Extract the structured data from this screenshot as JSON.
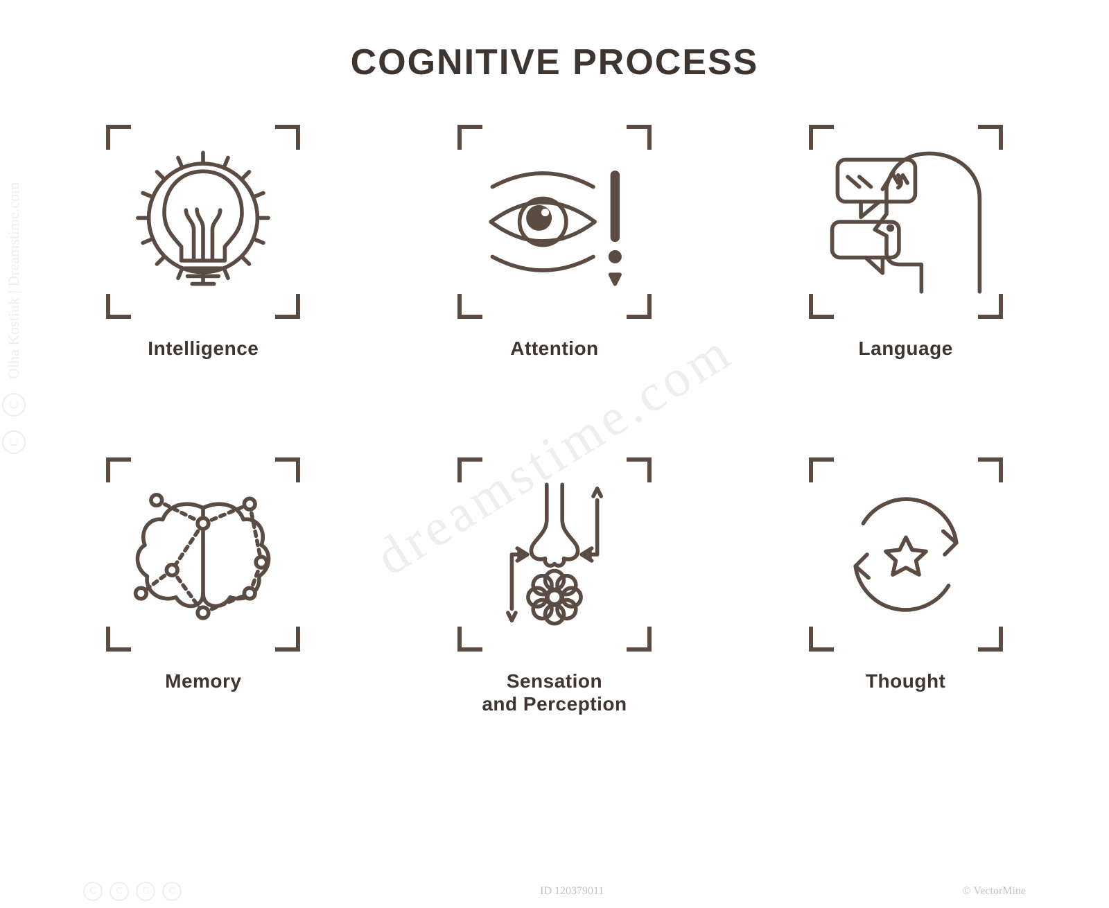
{
  "title": "COGNITIVE PROCESS",
  "title_fontsize": 52,
  "title_color": "#3f3530",
  "stroke_color": "#5a4c43",
  "background_color": "#ffffff",
  "frame_size": 280,
  "corner_size": 36,
  "corner_thickness": 6,
  "label_fontsize": 28,
  "label_color": "#3f3530",
  "icon_stroke_width": 5,
  "grid": {
    "cols": 3,
    "rows": 2,
    "col_gap": 120,
    "row_gap": 140
  },
  "cells": [
    {
      "id": "intelligence",
      "label": "Intelligence",
      "icon": "lightbulb-rays-icon"
    },
    {
      "id": "attention",
      "label": "Attention",
      "icon": "eye-alert-icon"
    },
    {
      "id": "language",
      "label": "Language",
      "icon": "head-speech-icon"
    },
    {
      "id": "memory",
      "label": "Memory",
      "icon": "brain-network-icon"
    },
    {
      "id": "sensation",
      "label": "Sensation\nand Perception",
      "icon": "nose-flower-cycle-icon"
    },
    {
      "id": "thought",
      "label": "Thought",
      "icon": "cycle-star-icon"
    }
  ],
  "watermark": {
    "color": "#f0eeec",
    "dark_color": "#c8c2bd",
    "diag_text": "dreamstime.com",
    "rotate_deg": -32,
    "diag_fontsize": 76,
    "left_text": "Olha Kostiuk | Dreamstime.com",
    "id_text": "ID 120379011",
    "credit_text": "© VectorMine"
  }
}
